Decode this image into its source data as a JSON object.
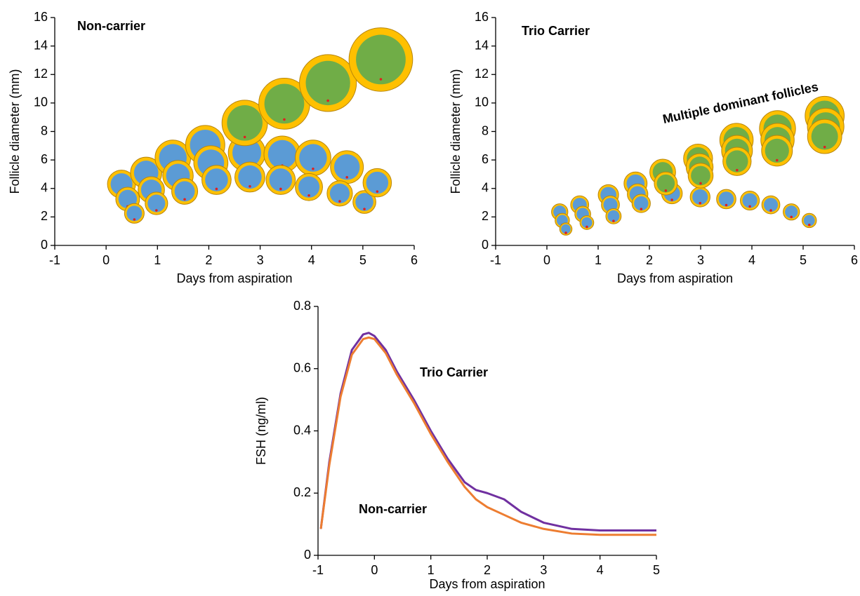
{
  "chart_data": [
    {
      "type": "scatter",
      "title": "Non-carrier",
      "xlabel": "Days from aspiration",
      "ylabel": "Follicle diameter (mm)",
      "xlim": [
        -1,
        6
      ],
      "xticks": [
        -1,
        0,
        1,
        2,
        3,
        4,
        5,
        6
      ],
      "ylim": [
        0,
        16
      ],
      "yticks": [
        0,
        2,
        4,
        6,
        8,
        10,
        12,
        14,
        16
      ],
      "series": [
        {
          "color": "#5b9bd5",
          "x": [
            0.3,
            0.42,
            0.55,
            0.78,
            0.88,
            0.98,
            1.3,
            1.4,
            1.53,
            1.93,
            2.04,
            2.15,
            2.74,
            2.8,
            3.43,
            3.4,
            4.03,
            3.95,
            4.69,
            4.55,
            5.03,
            5.28
          ],
          "values": [
            4.3,
            3.25,
            2.25,
            5.1,
            3.9,
            2.95,
            6.15,
            4.9,
            3.8,
            7.05,
            5.8,
            4.6,
            6.5,
            4.8,
            6.4,
            4.6,
            6.15,
            4.1,
            5.5,
            3.65,
            3.05,
            4.4
          ]
        },
        {
          "color": "#70ad47",
          "x": [
            2.7,
            3.47,
            4.32,
            5.35
          ],
          "values": [
            8.6,
            9.95,
            11.4,
            13.05
          ]
        }
      ]
    },
    {
      "type": "scatter",
      "title": "Trio Carrier",
      "annotation": "Multiple dominant follicles",
      "xlabel": "Days from aspiration",
      "ylabel": "Follicle diameter (mm)",
      "xlim": [
        -1,
        6
      ],
      "xticks": [
        -1,
        0,
        1,
        2,
        3,
        4,
        5,
        6
      ],
      "ylim": [
        0,
        16
      ],
      "yticks": [
        0,
        2,
        4,
        6,
        8,
        10,
        12,
        14,
        16
      ],
      "series": [
        {
          "color": "#5b9bd5",
          "x": [
            0.25,
            0.3,
            0.37,
            0.64,
            0.7,
            0.78,
            1.2,
            1.24,
            1.3,
            1.73,
            1.77,
            1.84,
            2.44,
            2.99,
            3.5,
            3.96,
            4.37,
            4.77,
            5.12
          ],
          "values": [
            2.35,
            1.75,
            1.15,
            2.85,
            2.2,
            1.6,
            3.55,
            2.85,
            2.05,
            4.35,
            3.6,
            2.95,
            3.65,
            3.4,
            3.25,
            3.15,
            2.85,
            2.35,
            1.75
          ]
        },
        {
          "color": "#70ad47",
          "x": [
            2.26,
            2.32,
            2.95,
            2.98,
            3.0,
            3.7,
            3.71,
            3.71,
            4.5,
            4.5,
            4.49,
            5.42,
            5.44,
            5.42
          ],
          "values": [
            5.15,
            4.35,
            6.1,
            5.5,
            4.9,
            7.4,
            6.65,
            5.9,
            8.2,
            7.4,
            6.65,
            9.1,
            8.35,
            7.65
          ]
        }
      ]
    },
    {
      "type": "line",
      "xlabel": "Days from aspiration",
      "ylabel": "FSH (ng/ml)",
      "xlim": [
        -1,
        5
      ],
      "xticks": [
        -1,
        0,
        1,
        2,
        3,
        4,
        5
      ],
      "ylim": [
        0,
        0.8
      ],
      "yticks": [
        0,
        0.2,
        0.4,
        0.6,
        0.8
      ],
      "series": [
        {
          "name": "Trio Carrier",
          "color": "#7030a0",
          "x": [
            -0.95,
            -0.8,
            -0.6,
            -0.4,
            -0.2,
            -0.1,
            0,
            0.2,
            0.4,
            0.7,
            1,
            1.3,
            1.6,
            1.8,
            2.0,
            2.3,
            2.6,
            3.0,
            3.5,
            4,
            5
          ],
          "values": [
            0.085,
            0.3,
            0.52,
            0.66,
            0.71,
            0.715,
            0.705,
            0.66,
            0.59,
            0.5,
            0.4,
            0.31,
            0.235,
            0.21,
            0.2,
            0.18,
            0.14,
            0.105,
            0.085,
            0.08,
            0.08
          ]
        },
        {
          "name": "Non-carrier",
          "color": "#ed7d31",
          "x": [
            -0.95,
            -0.8,
            -0.6,
            -0.4,
            -0.2,
            -0.1,
            0,
            0.2,
            0.4,
            0.7,
            1,
            1.3,
            1.6,
            1.8,
            2.0,
            2.3,
            2.6,
            3.0,
            3.5,
            4,
            5
          ],
          "values": [
            0.085,
            0.29,
            0.51,
            0.645,
            0.695,
            0.7,
            0.695,
            0.65,
            0.58,
            0.49,
            0.39,
            0.3,
            0.22,
            0.18,
            0.155,
            0.13,
            0.105,
            0.085,
            0.07,
            0.066,
            0.066
          ]
        }
      ]
    }
  ]
}
